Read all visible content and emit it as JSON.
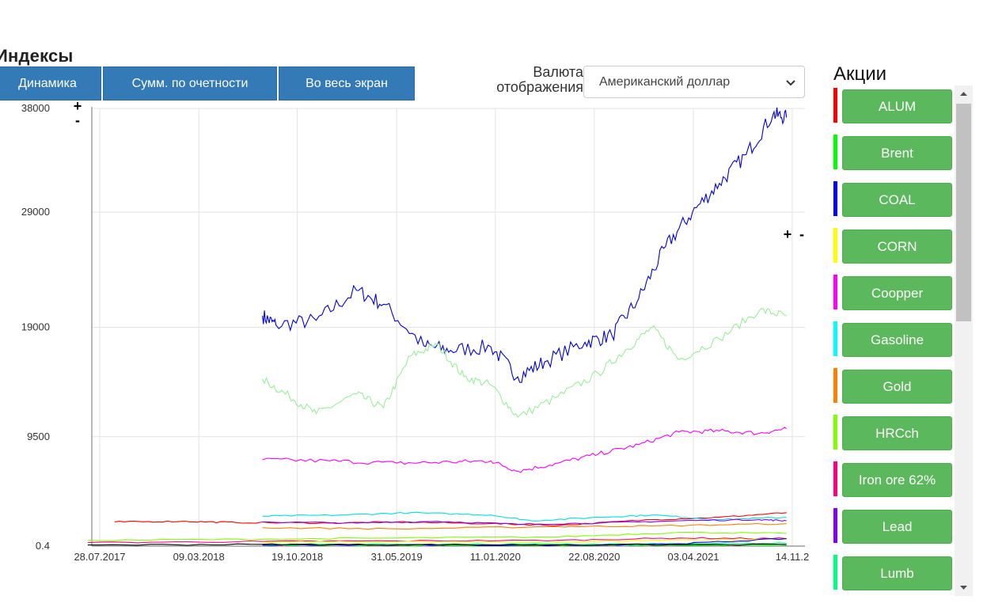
{
  "header": {
    "title": "Индексы"
  },
  "toolbar": {
    "dynamics_label": "Динамика",
    "sum_label": "Сумм. по очетности",
    "fullscreen_label": "Во весь экран"
  },
  "currency": {
    "label_line1": "Валюта",
    "label_line2": "отображения",
    "selected": "Американский доллар"
  },
  "stocks": {
    "title": "Акции",
    "items": [
      {
        "label": "ALUM",
        "color": "#ff0000"
      },
      {
        "label": "Brent",
        "color": "#00ff00"
      },
      {
        "label": "COAL",
        "color": "#0000ff"
      },
      {
        "label": "CORN",
        "color": "#ffff00"
      },
      {
        "label": "Coopper",
        "color": "#ff00ff"
      },
      {
        "label": "Gasoline",
        "color": "#00ffff"
      },
      {
        "label": "Gold",
        "color": "#ff8000"
      },
      {
        "label": "HRCch",
        "color": "#80ff00"
      },
      {
        "label": "Iron ore 62%",
        "color": "#ff0080"
      },
      {
        "label": "Lead",
        "color": "#8000ff"
      },
      {
        "label": "Lumb",
        "color": "#00ff80"
      }
    ]
  },
  "zoom_controls": {
    "plus": "+",
    "minus": "-"
  },
  "chart_data": {
    "type": "line",
    "xlabel": "",
    "ylabel": "",
    "yticks": [
      "38000",
      "29000",
      "19000",
      "9500",
      "0.4"
    ],
    "xticks": [
      "28.07.2017",
      "09.03.2018",
      "19.10.2018",
      "31.05.2019",
      "11.01.2020",
      "22.08.2020",
      "03.04.2021",
      "14.11.2"
    ],
    "ylim": [
      0.4,
      38000
    ],
    "grid": true,
    "series": [
      {
        "color": "#0000dd",
        "x": [
          "2018-08",
          "2018-09",
          "2018-12",
          "2019-03",
          "2019-05",
          "2019-08",
          "2019-10",
          "2020-01",
          "2020-03",
          "2020-05",
          "2020-08",
          "2020-10",
          "2020-12",
          "2021-02",
          "2021-04",
          "2021-06",
          "2021-08",
          "2021-10",
          "2021-11"
        ],
        "y": [
          20000,
          19200,
          19600,
          22200,
          21000,
          17400,
          17000,
          17300,
          14700,
          16000,
          17700,
          18300,
          21500,
          26000,
          29000,
          31500,
          34000,
          37500,
          37200
        ]
      },
      {
        "color": "#99ee99",
        "x": [
          "2018-08",
          "2018-10",
          "2018-12",
          "2019-03",
          "2019-05",
          "2019-07",
          "2019-09",
          "2019-11",
          "2020-01",
          "2020-03",
          "2020-06",
          "2020-09",
          "2020-11",
          "2021-01",
          "2021-03",
          "2021-06",
          "2021-09",
          "2021-11"
        ],
        "y": [
          14500,
          13000,
          11500,
          13200,
          12000,
          16500,
          17500,
          14700,
          14000,
          11200,
          13000,
          15000,
          17000,
          19000,
          16200,
          18000,
          20500,
          20000
        ]
      },
      {
        "color": "#ff00ff",
        "x": [
          "2018-08",
          "2019-01",
          "2019-06",
          "2019-10",
          "2020-01",
          "2020-03",
          "2020-06",
          "2020-09",
          "2020-12",
          "2021-03",
          "2021-06",
          "2021-09",
          "2021-11"
        ],
        "y": [
          7500,
          7400,
          7200,
          7300,
          7400,
          6500,
          7200,
          8000,
          8800,
          9900,
          10000,
          9800,
          10200
        ]
      },
      {
        "color": "#ff0000",
        "x": [
          "2017-09",
          "2018-02",
          "2018-06",
          "2019-01",
          "2019-06",
          "2020-01",
          "2020-06",
          "2021-01",
          "2021-06",
          "2021-11"
        ],
        "y": [
          2100,
          2150,
          2050,
          2000,
          2100,
          1950,
          1800,
          2300,
          2500,
          2900
        ]
      },
      {
        "color": "#00dddd",
        "x": [
          "2018-08",
          "2019-02",
          "2019-07",
          "2020-01",
          "2020-04",
          "2020-09",
          "2021-01",
          "2021-06",
          "2021-11"
        ],
        "y": [
          2600,
          2700,
          2900,
          2700,
          2200,
          2500,
          2700,
          2300,
          2500
        ]
      },
      {
        "color": "#8000ff",
        "x": [
          "2018-08",
          "2019-03",
          "2019-09",
          "2020-03",
          "2020-09",
          "2021-03",
          "2021-09",
          "2021-11"
        ],
        "y": [
          2100,
          2000,
          2150,
          1900,
          2000,
          2200,
          2300,
          2200
        ]
      },
      {
        "color": "#ff8000",
        "x": [
          "2018-08",
          "2019-06",
          "2020-06",
          "2021-01",
          "2021-11"
        ],
        "y": [
          1600,
          1500,
          1700,
          1750,
          1950
        ]
      },
      {
        "color": "#ff0080",
        "x": [
          "2017-07",
          "2018-08",
          "2019-06",
          "2020-06",
          "2021-03",
          "2021-11"
        ],
        "y": [
          300,
          400,
          450,
          500,
          700,
          650
        ]
      },
      {
        "color": "#80ff00",
        "x": [
          "2017-07",
          "2018-08",
          "2019-06",
          "2020-06",
          "2021-03",
          "2021-11"
        ],
        "y": [
          500,
          600,
          700,
          800,
          1200,
          1100
        ]
      },
      {
        "color": "#ffff00",
        "x": [
          "2018-08",
          "2019-06",
          "2020-06",
          "2021-03",
          "2021-11"
        ],
        "y": [
          350,
          380,
          330,
          550,
          600
        ]
      },
      {
        "color": "#00ff80",
        "x": [
          "2018-08",
          "2019-06",
          "2020-06",
          "2021-03",
          "2021-11"
        ],
        "y": [
          150,
          160,
          150,
          200,
          250
        ]
      },
      {
        "color": "#00ff00",
        "x": [
          "2018-08",
          "2019-06",
          "2020-04",
          "2021-03",
          "2021-11"
        ],
        "y": [
          80,
          70,
          40,
          75,
          85
        ]
      },
      {
        "color": "#0000ff",
        "x": [
          "2018-08",
          "2019-06",
          "2020-06",
          "2021-03",
          "2021-11"
        ],
        "y": [
          100,
          90,
          80,
          200,
          650
        ]
      },
      {
        "color": "#000000",
        "x": [
          "2017-07",
          "2018-08",
          "2019-06",
          "2020-06",
          "2021-11"
        ],
        "y": [
          100,
          150,
          120,
          110,
          140
        ]
      }
    ]
  }
}
